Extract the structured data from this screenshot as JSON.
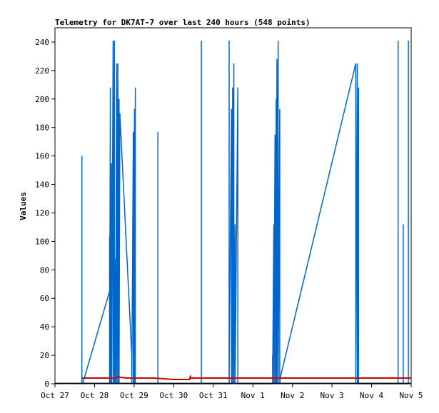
{
  "chart_data": {
    "type": "line",
    "title": "Telemetry for DK7AT-7 over last 240 hours (548 points)",
    "xlabel": "",
    "ylabel": "Values",
    "xlim": [
      0,
      9
    ],
    "ylim": [
      0,
      250
    ],
    "grid": false,
    "legend": "none",
    "x_tick_labels": [
      "Oct 27",
      "Oct 28",
      "Oct 29",
      "Oct 30",
      "Oct 31",
      "Nov 1",
      "Nov 2",
      "Nov 3",
      "Nov 4",
      "Nov 5"
    ],
    "y_ticks": [
      0,
      20,
      40,
      60,
      80,
      100,
      120,
      140,
      160,
      180,
      200,
      220,
      240
    ],
    "series": [
      {
        "color": "#0066cc",
        "points": [
          [
            0.68,
            0
          ],
          [
            0.68,
            160
          ],
          [
            0.68,
            0
          ],
          [
            0.7,
            0
          ],
          [
            1.38,
            65
          ],
          [
            1.38,
            104
          ],
          [
            1.38,
            0
          ],
          [
            1.4,
            208
          ],
          [
            1.4,
            0
          ],
          [
            1.43,
            155
          ],
          [
            1.43,
            0
          ],
          [
            1.47,
            241
          ],
          [
            1.47,
            0
          ],
          [
            1.5,
            241
          ],
          [
            1.5,
            0
          ],
          [
            1.53,
            88
          ],
          [
            1.53,
            0
          ],
          [
            1.56,
            225
          ],
          [
            1.56,
            0
          ],
          [
            1.59,
            225
          ],
          [
            1.59,
            0
          ],
          [
            1.62,
            200
          ],
          [
            1.62,
            0
          ],
          [
            1.64,
            190
          ],
          [
            1.94,
            20
          ],
          [
            1.94,
            0
          ],
          [
            1.98,
            177
          ],
          [
            1.98,
            0
          ],
          [
            2.01,
            193
          ],
          [
            2.01,
            0
          ],
          [
            2.03,
            208
          ],
          [
            2.03,
            0
          ],
          [
            2.6,
            0
          ],
          [
            2.6,
            177
          ],
          [
            2.6,
            0
          ],
          [
            3.7,
            0
          ],
          [
            3.7,
            241
          ],
          [
            3.7,
            0
          ],
          [
            4.4,
            0
          ],
          [
            4.4,
            241
          ],
          [
            4.4,
            0
          ],
          [
            4.46,
            193
          ],
          [
            4.46,
            0
          ],
          [
            4.49,
            208
          ],
          [
            4.49,
            0
          ],
          [
            4.52,
            225
          ],
          [
            4.52,
            0
          ],
          [
            4.55,
            112
          ],
          [
            4.55,
            0
          ],
          [
            4.62,
            208
          ],
          [
            4.62,
            0
          ],
          [
            5.5,
            0
          ],
          [
            5.5,
            20
          ],
          [
            5.5,
            0
          ],
          [
            5.53,
            112
          ],
          [
            5.53,
            0
          ],
          [
            5.56,
            175
          ],
          [
            5.56,
            0
          ],
          [
            5.59,
            200
          ],
          [
            5.59,
            0
          ],
          [
            5.61,
            228
          ],
          [
            5.61,
            0
          ],
          [
            5.64,
            241
          ],
          [
            5.64,
            0
          ],
          [
            5.68,
            193
          ],
          [
            5.68,
            0
          ],
          [
            5.7,
            5
          ],
          [
            7.6,
            225
          ],
          [
            7.6,
            0
          ],
          [
            7.64,
            225
          ],
          [
            7.64,
            0
          ],
          [
            7.67,
            208
          ],
          [
            7.67,
            0
          ],
          [
            8.67,
            0
          ],
          [
            8.67,
            241
          ],
          [
            8.67,
            0
          ],
          [
            8.8,
            0
          ],
          [
            8.8,
            112
          ],
          [
            8.8,
            0
          ],
          [
            8.93,
            0
          ],
          [
            8.93,
            241
          ],
          [
            8.93,
            0
          ]
        ]
      },
      {
        "color": "#cc0000",
        "points": [
          [
            0.68,
            4
          ],
          [
            1.55,
            4
          ],
          [
            1.58,
            5
          ],
          [
            1.66,
            4.5
          ],
          [
            1.8,
            4
          ],
          [
            2.5,
            4
          ],
          [
            2.75,
            3.5
          ],
          [
            3.0,
            3
          ],
          [
            3.4,
            3
          ],
          [
            3.42,
            5
          ],
          [
            3.44,
            4
          ],
          [
            9.0,
            4
          ]
        ]
      },
      {
        "color": "#000000",
        "points": [
          [
            0,
            0.3
          ],
          [
            9,
            0.3
          ]
        ]
      }
    ]
  }
}
